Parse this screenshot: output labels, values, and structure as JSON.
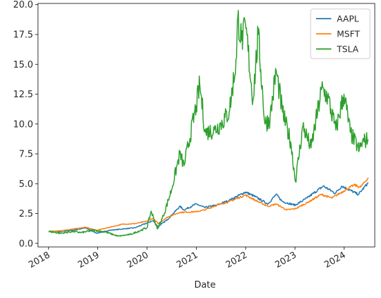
{
  "chart_data": {
    "type": "line",
    "title": "",
    "xlabel": "Date",
    "ylabel": "",
    "xlim": [
      "2017-10-15",
      "2024-08-15"
    ],
    "ylim": [
      -0.3,
      20.1
    ],
    "grid": false,
    "legend_position": "top-right",
    "x_ticks": [
      "2018",
      "2019",
      "2020",
      "2021",
      "2022",
      "2023",
      "2024"
    ],
    "x_tick_dates": [
      "2018-01-01",
      "2019-01-01",
      "2020-01-01",
      "2021-01-01",
      "2022-01-01",
      "2023-01-01",
      "2024-01-01"
    ],
    "y_ticks": [
      0.0,
      2.5,
      5.0,
      7.5,
      10.0,
      12.5,
      15.0,
      17.5,
      20.0
    ],
    "y_tick_labels": [
      "0.0",
      "2.5",
      "5.0",
      "7.5",
      "10.0",
      "12.5",
      "15.0",
      "17.5",
      "20.0"
    ],
    "series": [
      {
        "name": "AAPL",
        "color": "#1f77b4",
        "points": [
          [
            "2018-01-02",
            1.0
          ],
          [
            "2018-04-01",
            1.0
          ],
          [
            "2018-07-01",
            1.1
          ],
          [
            "2018-10-01",
            1.3
          ],
          [
            "2018-12-24",
            0.85
          ],
          [
            "2019-04-01",
            1.1
          ],
          [
            "2019-07-01",
            1.2
          ],
          [
            "2019-10-01",
            1.3
          ],
          [
            "2019-12-31",
            1.7
          ],
          [
            "2020-02-15",
            1.9
          ],
          [
            "2020-03-23",
            1.4
          ],
          [
            "2020-06-01",
            2.0
          ],
          [
            "2020-09-01",
            3.1
          ],
          [
            "2020-10-01",
            2.8
          ],
          [
            "2020-12-31",
            3.3
          ],
          [
            "2021-03-01",
            3.0
          ],
          [
            "2021-06-01",
            3.2
          ],
          [
            "2021-09-01",
            3.6
          ],
          [
            "2021-12-31",
            4.3
          ],
          [
            "2022-03-15",
            3.9
          ],
          [
            "2022-06-15",
            3.3
          ],
          [
            "2022-08-15",
            4.1
          ],
          [
            "2022-10-01",
            3.5
          ],
          [
            "2023-01-03",
            3.2
          ],
          [
            "2023-04-01",
            3.8
          ],
          [
            "2023-07-31",
            4.8
          ],
          [
            "2023-10-27",
            4.2
          ],
          [
            "2023-12-15",
            4.8
          ],
          [
            "2024-04-15",
            4.1
          ],
          [
            "2024-05-15",
            4.5
          ],
          [
            "2024-06-28",
            5.1
          ]
        ]
      },
      {
        "name": "MSFT",
        "color": "#ff7f0e",
        "points": [
          [
            "2018-01-02",
            1.0
          ],
          [
            "2018-04-01",
            1.05
          ],
          [
            "2018-07-01",
            1.2
          ],
          [
            "2018-10-01",
            1.35
          ],
          [
            "2018-12-24",
            1.1
          ],
          [
            "2019-04-01",
            1.35
          ],
          [
            "2019-07-01",
            1.6
          ],
          [
            "2019-10-01",
            1.65
          ],
          [
            "2019-12-31",
            1.85
          ],
          [
            "2020-02-15",
            2.1
          ],
          [
            "2020-03-23",
            1.65
          ],
          [
            "2020-06-01",
            2.2
          ],
          [
            "2020-09-01",
            2.6
          ],
          [
            "2020-12-31",
            2.65
          ],
          [
            "2021-03-01",
            2.8
          ],
          [
            "2021-06-01",
            3.2
          ],
          [
            "2021-09-01",
            3.5
          ],
          [
            "2021-12-31",
            4.05
          ],
          [
            "2022-03-15",
            3.6
          ],
          [
            "2022-06-15",
            3.1
          ],
          [
            "2022-08-15",
            3.3
          ],
          [
            "2022-11-01",
            2.8
          ],
          [
            "2023-01-03",
            2.9
          ],
          [
            "2023-04-01",
            3.4
          ],
          [
            "2023-07-15",
            4.1
          ],
          [
            "2023-10-01",
            3.8
          ],
          [
            "2023-12-31",
            4.4
          ],
          [
            "2024-03-15",
            4.9
          ],
          [
            "2024-04-30",
            4.7
          ],
          [
            "2024-06-28",
            5.5
          ]
        ]
      },
      {
        "name": "TSLA",
        "color": "#2ca02c",
        "points": [
          [
            "2018-01-02",
            1.0
          ],
          [
            "2018-04-01",
            0.85
          ],
          [
            "2018-07-01",
            1.0
          ],
          [
            "2018-09-01",
            0.9
          ],
          [
            "2018-12-01",
            1.1
          ],
          [
            "2019-03-01",
            0.95
          ],
          [
            "2019-06-01",
            0.6
          ],
          [
            "2019-09-01",
            0.75
          ],
          [
            "2019-12-31",
            1.3
          ],
          [
            "2020-02-01",
            2.7
          ],
          [
            "2020-03-18",
            1.2
          ],
          [
            "2020-05-01",
            2.3
          ],
          [
            "2020-07-01",
            4.5
          ],
          [
            "2020-08-31",
            7.5
          ],
          [
            "2020-10-01",
            6.5
          ],
          [
            "2020-12-31",
            11.5
          ],
          [
            "2021-01-26",
            13.3
          ],
          [
            "2021-03-08",
            9.3
          ],
          [
            "2021-05-15",
            9.5
          ],
          [
            "2021-07-01",
            10.0
          ],
          [
            "2021-09-01",
            11.0
          ],
          [
            "2021-10-25",
            15.5
          ],
          [
            "2021-11-04",
            19.0
          ],
          [
            "2021-12-01",
            17.0
          ],
          [
            "2022-01-03",
            18.0
          ],
          [
            "2022-02-24",
            12.0
          ],
          [
            "2022-04-04",
            17.5
          ],
          [
            "2022-05-24",
            10.0
          ],
          [
            "2022-07-01",
            10.5
          ],
          [
            "2022-08-15",
            14.5
          ],
          [
            "2022-10-01",
            11.0
          ],
          [
            "2022-12-01",
            8.5
          ],
          [
            "2023-01-05",
            5.2
          ],
          [
            "2023-03-01",
            9.8
          ],
          [
            "2023-05-01",
            8.0
          ],
          [
            "2023-07-18",
            12.9
          ],
          [
            "2023-09-01",
            12.3
          ],
          [
            "2023-10-31",
            9.5
          ],
          [
            "2023-12-31",
            12.5
          ],
          [
            "2024-02-15",
            9.3
          ],
          [
            "2024-04-22",
            7.8
          ],
          [
            "2024-05-15",
            8.5
          ],
          [
            "2024-06-28",
            8.7
          ]
        ]
      }
    ]
  }
}
